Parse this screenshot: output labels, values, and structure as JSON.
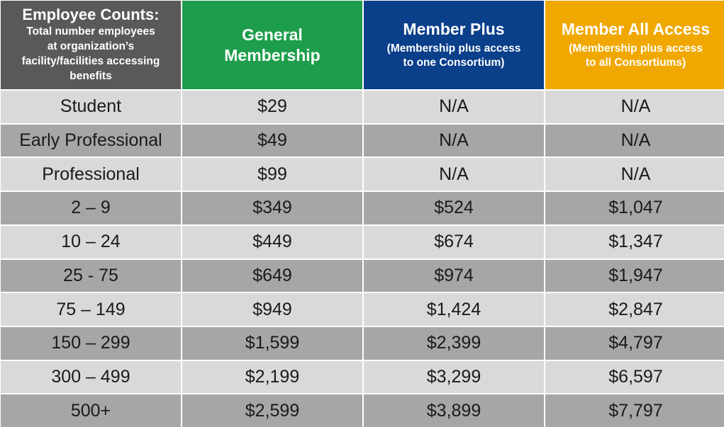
{
  "header": {
    "col0": {
      "title": "Employee Counts:",
      "lines": [
        "Total number employees",
        "at organization’s",
        "facility/facilities accessing",
        "benefits"
      ]
    },
    "col1": {
      "title_lines": [
        "General",
        "Membership"
      ]
    },
    "col2": {
      "title": "Member Plus",
      "sub_lines": [
        "(Membership plus access",
        "to one Consortium)"
      ]
    },
    "col3": {
      "title": "Member All Access",
      "sub_lines": [
        "(Membership plus access",
        "to all Consortiums)"
      ]
    }
  },
  "colors": {
    "col0_header": "#595959",
    "col1_header": "#1e9e4c",
    "col2_header": "#0a3f8a",
    "col3_header": "#f0a800",
    "row_light": "#d9d9d9",
    "row_dark": "#a6a6a6"
  },
  "rows": [
    [
      "Student",
      "$29",
      "N/A",
      "N/A"
    ],
    [
      "Early Professional",
      "$49",
      "N/A",
      "N/A"
    ],
    [
      "Professional",
      "$99",
      "N/A",
      "N/A"
    ],
    [
      "2 – 9",
      "$349",
      "$524",
      "$1,047"
    ],
    [
      "10 – 24",
      "$449",
      "$674",
      "$1,347"
    ],
    [
      "25 - 75",
      "$649",
      "$974",
      "$1,947"
    ],
    [
      "75 – 149",
      "$949",
      "$1,424",
      "$2,847"
    ],
    [
      "150 – 299",
      "$1,599",
      "$2,399",
      "$4,797"
    ],
    [
      "300 – 499",
      "$2,199",
      "$3,299",
      "$6,597"
    ],
    [
      "500+",
      "$2,599",
      "$3,899",
      "$7,797"
    ]
  ]
}
